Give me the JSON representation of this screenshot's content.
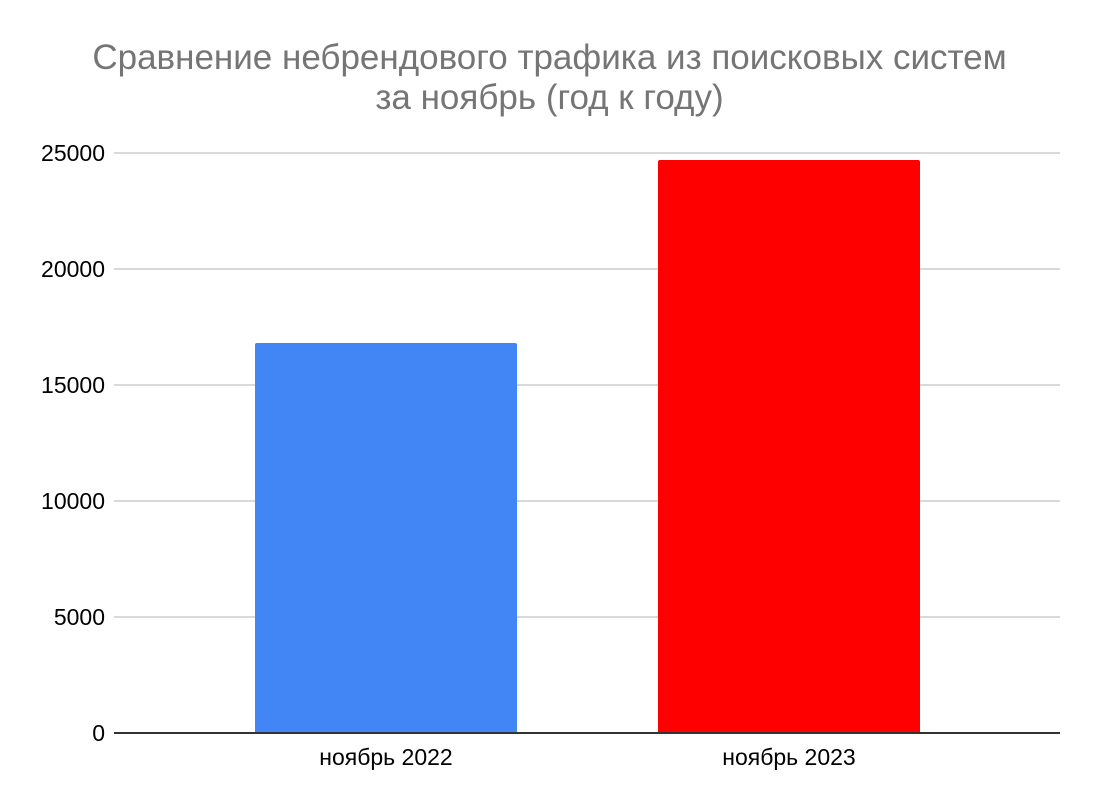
{
  "page": {
    "background": "#ffffff"
  },
  "header": {
    "title_line1": "Сравнение небрендового трафика из поисковых систем",
    "title_line2": "за ноябрь (год к году)",
    "title_color": "#757575"
  },
  "chart_data": {
    "type": "bar",
    "title": "Сравнение небрендового трафика из поисковых систем за ноябрь (год к году)",
    "categories": [
      "ноябрь 2022",
      "ноябрь 2023"
    ],
    "values": [
      16800,
      24700
    ],
    "bar_colors": [
      "#4285f4",
      "#ff0000"
    ],
    "xlabel": "",
    "ylabel": "",
    "ylim": [
      0,
      25000
    ],
    "yticks": [
      0,
      5000,
      10000,
      15000,
      20000,
      25000
    ],
    "grid": true,
    "legend_position": "none",
    "style": {
      "gridline_color": "#d9d9d9",
      "axis_line_color": "#333333",
      "tick_label_color": "#000000"
    }
  }
}
